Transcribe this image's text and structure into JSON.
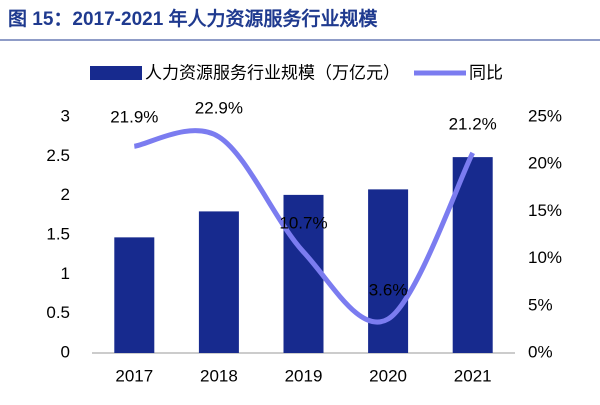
{
  "chart_data": {
    "type": "bar-line",
    "title": "图 15：2017-2021 年人力资源服务行业规模",
    "categories": [
      "2017",
      "2018",
      "2019",
      "2020",
      "2021"
    ],
    "series": [
      {
        "name": "人力资源服务行业规模（万亿元）",
        "type": "bar",
        "color": "#172a8e",
        "values": [
          1.47,
          1.8,
          2.01,
          2.08,
          2.49
        ]
      },
      {
        "name": "同比",
        "type": "line",
        "axis": "y2",
        "color": "#7b7cf0",
        "values": [
          21.9,
          22.9,
          10.7,
          3.6,
          21.2
        ],
        "value_labels": [
          "21.9%",
          "22.9%",
          "10.7%",
          "3.6%",
          "21.2%"
        ]
      }
    ],
    "ylim": [
      0,
      3
    ],
    "yticks": [
      0,
      0.5,
      1,
      1.5,
      2,
      2.5,
      3
    ],
    "y2lim": [
      0,
      25
    ],
    "y2ticks": [
      {
        "value": 0,
        "label": "0%"
      },
      {
        "value": 5,
        "label": "5%"
      },
      {
        "value": 10,
        "label": "10%"
      },
      {
        "value": 15,
        "label": "15%"
      },
      {
        "value": 20,
        "label": "20%"
      },
      {
        "value": 25,
        "label": "25%"
      }
    ],
    "legend": "top"
  }
}
